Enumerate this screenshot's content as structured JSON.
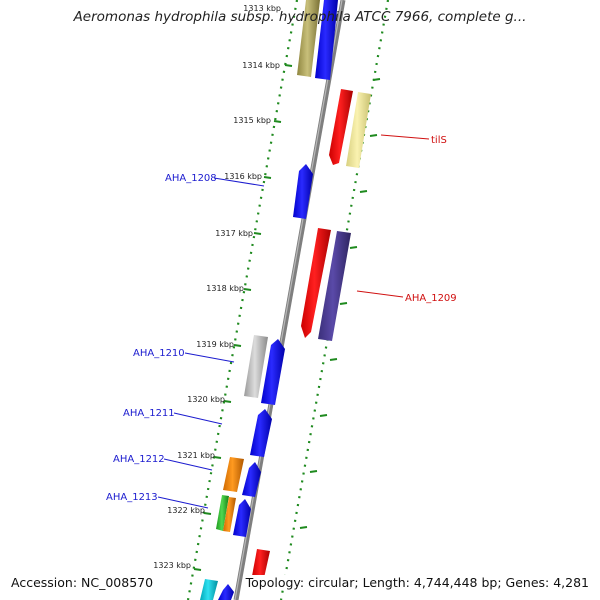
{
  "title": "Aeromonas hydrophila subsp. hydrophila ATCC 7966, complete g...",
  "accession": "Accession: NC_008570",
  "summary": "Topology: circular; Length: 4,744,448 bp; Genes: 4,281",
  "colors": {
    "background": "#ffffff",
    "backbone": "#7f7f7f",
    "tick": "#1f8a1f",
    "label_reverse": "#1c1ccf",
    "label_forward": "#d01010"
  },
  "ticks": [
    {
      "label": "1313 kbp"
    },
    {
      "label": "1314 kbp"
    },
    {
      "label": "1315 kbp"
    },
    {
      "label": "1316 kbp"
    },
    {
      "label": "1317 kbp"
    },
    {
      "label": "1318 kbp"
    },
    {
      "label": "1319 kbp"
    },
    {
      "label": "1320 kbp"
    },
    {
      "label": "1321 kbp"
    },
    {
      "label": "1322 kbp"
    },
    {
      "label": "1323 kbp"
    }
  ],
  "gene_labels": [
    {
      "text": "tilS"
    },
    {
      "text": "AHA_1208"
    },
    {
      "text": "AHA_1209"
    },
    {
      "text": "AHA_1210"
    },
    {
      "text": "AHA_1211"
    },
    {
      "text": "AHA_1212"
    },
    {
      "text": "AHA_1213"
    }
  ]
}
